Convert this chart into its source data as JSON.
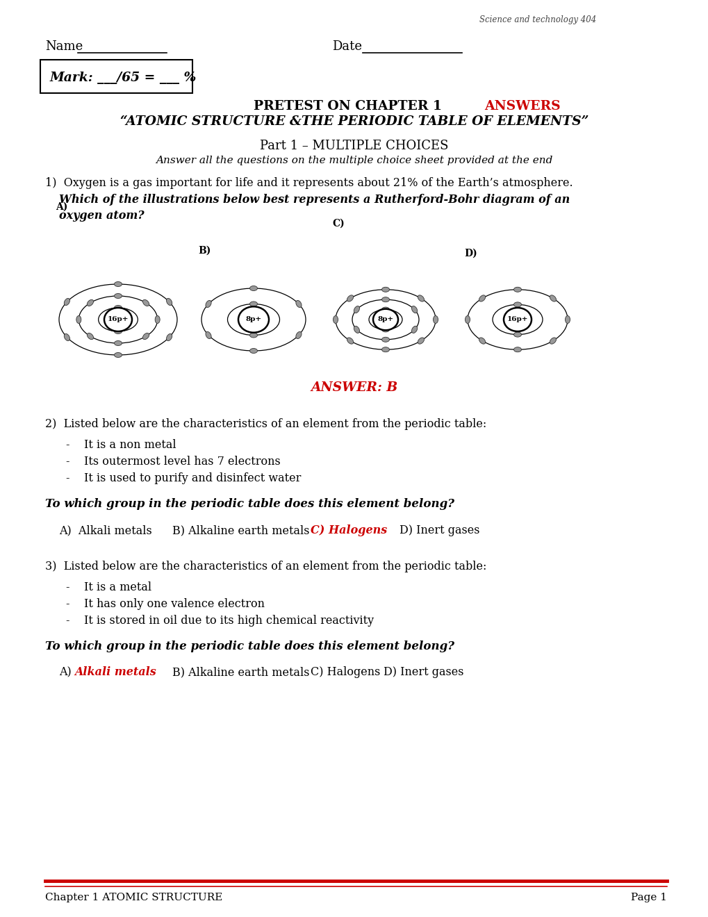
{
  "bg_color": "#ffffff",
  "header_italic": "Science and technology 404",
  "name_label": "Name",
  "date_label": "Date",
  "mark_box": "Mark: ___/65 = ___ %",
  "title_black": "PRETEST ON CHAPTER 1  ",
  "title_red": "ANSWERS",
  "title_sub": "“ATOMIC STRUCTURE &THE PERIODIC TABLE OF ELEMENTS”",
  "part_title": "Part 1 – MULTIPLE CHOICES",
  "part_subtitle": "Answer all the questions on the multiple choice sheet provided at the end",
  "q1_text1": "1)  Oxygen is a gas important for life and it represents about 21% of the Earth’s atmosphere.",
  "q1_text2": "Which of the illustrations below best represents a Rutherford-Bohr diagram of an",
  "q1_text3": "oxygen atom?",
  "answer1": "ANSWER: B",
  "q2_intro": "2)  Listed below are the characteristics of an element from the periodic table:",
  "q2_bullets": [
    "It is a non metal",
    "Its outermost level has 7 electrons",
    "It is used to purify and disinfect water"
  ],
  "q2_bold_q": "To which group in the periodic table does this element belong?",
  "q3_intro": "3)  Listed below are the characteristics of an element from the periodic table:",
  "q3_bullets": [
    "It is a metal",
    "It has only one valence electron",
    "It is stored in oil due to its high chemical reactivity"
  ],
  "q3_bold_q": "To which group in the periodic table does this element belong?",
  "q3_choice_red": "Alkali metals",
  "footer_left": "Chapter 1 ATOMIC STRUCTURE",
  "footer_right": "Page 1",
  "red_color": "#cc0000",
  "black_color": "#000000"
}
